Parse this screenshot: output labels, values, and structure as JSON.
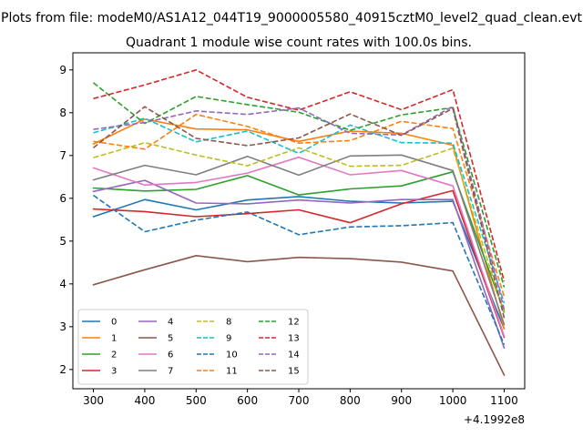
{
  "chart_data": {
    "type": "line",
    "suptitle": "Plots from file: modeM0/AS1A12_044T19_9000005580_40915cztM0_level2_quad_clean.evt",
    "title": "Quadrant 1 module wise count rates with 100.0s bins.",
    "xlabel": "",
    "ylabel": "",
    "x_offset_label": "+4.1992e8",
    "x": [
      300,
      400,
      500,
      600,
      700,
      800,
      900,
      1000,
      1100
    ],
    "xlim": [
      260,
      1140
    ],
    "ylim": [
      1.55,
      9.4
    ],
    "x_ticks": [
      "300",
      "400",
      "500",
      "600",
      "700",
      "800",
      "900",
      "1000",
      "1100"
    ],
    "y_ticks": [
      "2",
      "3",
      "4",
      "5",
      "6",
      "7",
      "8",
      "9"
    ],
    "legend_position": "lower-left",
    "series": [
      {
        "name": "0",
        "color": "#1f77b4",
        "dash": false,
        "values": [
          5.57,
          5.97,
          5.73,
          5.96,
          6.04,
          5.93,
          5.89,
          5.93,
          2.95
        ]
      },
      {
        "name": "1",
        "color": "#ff7f0e",
        "dash": false,
        "values": [
          7.27,
          7.85,
          7.62,
          7.6,
          7.33,
          7.57,
          7.52,
          7.24,
          2.95
        ]
      },
      {
        "name": "2",
        "color": "#2ca02c",
        "dash": false,
        "values": [
          6.24,
          6.17,
          6.21,
          6.53,
          6.08,
          6.22,
          6.29,
          6.62,
          3.35
        ]
      },
      {
        "name": "3",
        "color": "#d62728",
        "dash": false,
        "values": [
          5.75,
          5.69,
          5.57,
          5.64,
          5.73,
          5.43,
          5.87,
          6.18,
          2.75
        ]
      },
      {
        "name": "4",
        "color": "#9467bd",
        "dash": false,
        "values": [
          6.16,
          6.42,
          5.89,
          5.87,
          5.96,
          5.89,
          5.97,
          5.97,
          2.5
        ]
      },
      {
        "name": "5",
        "color": "#8c564b",
        "dash": false,
        "values": [
          3.98,
          4.33,
          4.66,
          4.52,
          4.62,
          4.59,
          4.51,
          4.3,
          1.87
        ]
      },
      {
        "name": "6",
        "color": "#e377c2",
        "dash": false,
        "values": [
          6.71,
          6.31,
          6.37,
          6.59,
          6.96,
          6.55,
          6.65,
          6.29,
          2.78
        ]
      },
      {
        "name": "7",
        "color": "#7f7f7f",
        "dash": false,
        "values": [
          6.43,
          6.77,
          6.55,
          6.98,
          6.54,
          6.99,
          7.01,
          6.65,
          3.05
        ]
      },
      {
        "name": "8",
        "color": "#bcbd22",
        "dash": true,
        "values": [
          6.95,
          7.3,
          7.01,
          6.76,
          7.18,
          6.75,
          6.77,
          7.17,
          3.3
        ]
      },
      {
        "name": "9",
        "color": "#17becf",
        "dash": true,
        "values": [
          7.53,
          7.87,
          7.32,
          7.57,
          7.05,
          7.71,
          7.3,
          7.29,
          3.55
        ]
      },
      {
        "name": "10",
        "color": "#1f77b4",
        "dash": true,
        "values": [
          6.07,
          5.22,
          5.49,
          5.68,
          5.15,
          5.33,
          5.36,
          5.43,
          2.58
        ]
      },
      {
        "name": "11",
        "color": "#ff7f0e",
        "dash": true,
        "values": [
          7.33,
          7.15,
          7.96,
          7.68,
          7.29,
          7.35,
          7.8,
          7.63,
          3.7
        ]
      },
      {
        "name": "12",
        "color": "#2ca02c",
        "dash": true,
        "values": [
          8.7,
          7.75,
          8.38,
          8.19,
          8.01,
          7.59,
          7.95,
          8.12,
          3.92
        ]
      },
      {
        "name": "13",
        "color": "#d62728",
        "dash": true,
        "values": [
          8.33,
          8.65,
          9.0,
          8.36,
          8.06,
          8.49,
          8.07,
          8.54,
          4.06
        ]
      },
      {
        "name": "14",
        "color": "#9467bd",
        "dash": true,
        "values": [
          7.61,
          7.77,
          8.04,
          7.96,
          8.11,
          7.52,
          7.48,
          8.15,
          3.4
        ]
      },
      {
        "name": "15",
        "color": "#8c564b",
        "dash": true,
        "values": [
          7.18,
          8.14,
          7.4,
          7.23,
          7.41,
          7.97,
          7.47,
          8.1,
          3.2
        ]
      }
    ]
  }
}
